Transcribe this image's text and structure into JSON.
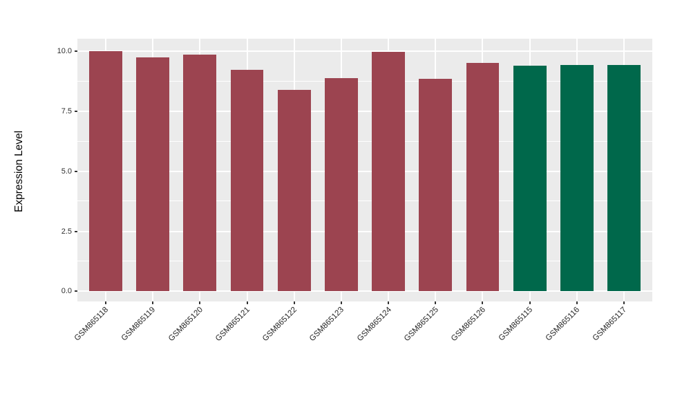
{
  "chart_data": {
    "type": "bar",
    "title": "",
    "xlabel": "",
    "ylabel": "Expression Level",
    "categories": [
      "GSM865118",
      "GSM865119",
      "GSM865120",
      "GSM865121",
      "GSM865122",
      "GSM865123",
      "GSM865124",
      "GSM865125",
      "GSM865126",
      "GSM865115",
      "GSM865116",
      "GSM865117"
    ],
    "values": [
      10.0,
      9.76,
      9.88,
      9.23,
      8.4,
      8.88,
      9.97,
      8.85,
      9.53,
      9.4,
      9.45,
      9.45
    ],
    "colors": [
      "#9C4450",
      "#9C4450",
      "#9C4450",
      "#9C4450",
      "#9C4450",
      "#9C4450",
      "#9C4450",
      "#9C4450",
      "#9C4450",
      "#00684B",
      "#00684B",
      "#00684B"
    ],
    "bar_color_red": "#9C4450",
    "bar_color_green": "#00684B",
    "yticks": [
      0.0,
      2.5,
      5.0,
      7.5,
      10.0
    ],
    "ytick_labels": [
      "0.0",
      "2.5",
      "5.0",
      "7.5",
      "10.0"
    ],
    "yticks_minor": [
      1.25,
      3.75,
      6.25,
      8.75
    ],
    "ylim": [
      0,
      10
    ],
    "axis_range": {
      "xmin": 0.4,
      "xmax": 12.6,
      "ymin": -0.42,
      "ymax": 10.53
    },
    "bar_width_units": 0.7,
    "grid": true,
    "legend": "none",
    "panel_bg": "#EBEBEB",
    "grid_color": "#FFFFFF",
    "tick_color": "#333333"
  }
}
